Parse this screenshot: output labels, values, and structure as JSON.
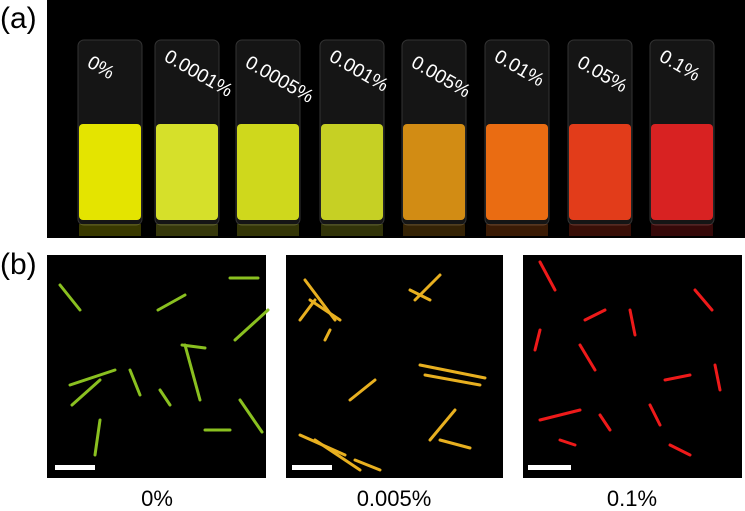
{
  "panel_a": {
    "label": "(a)",
    "vials": [
      "0%",
      "0.0001%",
      "0.0005%",
      "0.001%",
      "0.005%",
      "0.01%",
      "0.05%",
      "0.1%"
    ]
  },
  "panel_b": {
    "label": "(b)",
    "captions": [
      "0%",
      "0.005%",
      "0.1%"
    ]
  }
}
